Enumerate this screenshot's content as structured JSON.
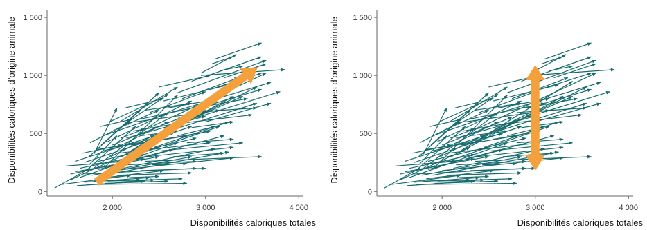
{
  "chart_data": [
    {
      "type": "line",
      "xlabel": "Disponibilités caloriques totales",
      "ylabel": "Disponibilités caloriques d’origine animale",
      "xlim": [
        1300,
        4050
      ],
      "ylim": [
        -40,
        1560
      ],
      "x_ticks": [
        {
          "value": 2000,
          "label": "2 000"
        },
        {
          "value": 3000,
          "label": "3 000"
        },
        {
          "value": 4000,
          "label": "4 000"
        }
      ],
      "y_ticks": [
        {
          "value": 0,
          "label": "0"
        },
        {
          "value": 500,
          "label": "500"
        },
        {
          "value": 1000,
          "label": "1 000"
        },
        {
          "value": 1500,
          "label": "1 500"
        }
      ],
      "arrow_color": "#176b6e",
      "overlay_color": "#f4a03d",
      "overlay": {
        "kind": "single",
        "from": [
          1830,
          80
        ],
        "to": [
          3560,
          1070
        ]
      }
    },
    {
      "type": "line",
      "xlabel": "Disponibilités caloriques totales",
      "ylabel": "Disponibilités caloriques d’origine animale",
      "xlim": [
        1300,
        4050
      ],
      "ylim": [
        -40,
        1560
      ],
      "x_ticks": [
        {
          "value": 2000,
          "label": "2 000"
        },
        {
          "value": 3000,
          "label": "3 000"
        },
        {
          "value": 4000,
          "label": "4 000"
        }
      ],
      "y_ticks": [
        {
          "value": 0,
          "label": "0"
        },
        {
          "value": 500,
          "label": "500"
        },
        {
          "value": 1000,
          "label": "1 000"
        },
        {
          "value": 1500,
          "label": "1 500"
        }
      ],
      "arrow_color": "#176b6e",
      "overlay_color": "#f4a03d",
      "overlay": {
        "kind": "double",
        "from": [
          3000,
          180
        ],
        "to": [
          3000,
          1090
        ]
      }
    }
  ],
  "arrows": [
    [
      1380,
      30,
      1760,
      200
    ],
    [
      1450,
      60,
      2200,
      140
    ],
    [
      1500,
      220,
      2150,
      260
    ],
    [
      1550,
      100,
      2300,
      380
    ],
    [
      1600,
      170,
      2500,
      300
    ],
    [
      1650,
      120,
      2700,
      420
    ],
    [
      1700,
      80,
      2400,
      120
    ],
    [
      1700,
      250,
      2850,
      560
    ],
    [
      1720,
      180,
      2250,
      560
    ],
    [
      1750,
      300,
      2300,
      700
    ],
    [
      1780,
      140,
      2850,
      300
    ],
    [
      1800,
      320,
      2050,
      720
    ],
    [
      1800,
      200,
      2600,
      680
    ],
    [
      1830,
      110,
      2550,
      180
    ],
    [
      1850,
      260,
      2900,
      460
    ],
    [
      1880,
      400,
      2500,
      850
    ],
    [
      1900,
      140,
      3250,
      340
    ],
    [
      1900,
      350,
      2650,
      500
    ],
    [
      1920,
      210,
      2700,
      830
    ],
    [
      1950,
      90,
      2750,
      110
    ],
    [
      1950,
      430,
      2850,
      780
    ],
    [
      1980,
      300,
      3000,
      700
    ],
    [
      2000,
      180,
      3300,
      290
    ],
    [
      2000,
      520,
      2500,
      700
    ],
    [
      2020,
      250,
      3150,
      560
    ],
    [
      2050,
      380,
      2600,
      600
    ],
    [
      2050,
      140,
      2850,
      160
    ],
    [
      2080,
      600,
      2700,
      900
    ],
    [
      2100,
      300,
      3300,
      820
    ],
    [
      2120,
      200,
      3100,
      370
    ],
    [
      2150,
      460,
      3000,
      650
    ],
    [
      2180,
      120,
      2500,
      130
    ],
    [
      2200,
      350,
      3400,
      950
    ],
    [
      2220,
      520,
      2800,
      600
    ],
    [
      2250,
      280,
      3200,
      480
    ],
    [
      2280,
      620,
      3100,
      760
    ],
    [
      2300,
      180,
      3000,
      200
    ],
    [
      2330,
      420,
      3550,
      900
    ],
    [
      2350,
      700,
      2850,
      760
    ],
    [
      2380,
      300,
      3300,
      380
    ],
    [
      2400,
      550,
      3650,
      1020
    ],
    [
      2430,
      230,
      2800,
      240
    ],
    [
      2450,
      480,
      3400,
      820
    ],
    [
      2500,
      650,
      3700,
      940
    ],
    [
      2520,
      350,
      3400,
      420
    ],
    [
      2550,
      780,
      3250,
      920
    ],
    [
      2600,
      520,
      3550,
      760
    ],
    [
      2650,
      300,
      3200,
      330
    ],
    [
      2700,
      850,
      3650,
      1130
    ],
    [
      2750,
      600,
      3800,
      860
    ],
    [
      2800,
      420,
      3300,
      450
    ],
    [
      2850,
      950,
      3600,
      1160
    ],
    [
      2900,
      720,
      3450,
      800
    ],
    [
      2950,
      1020,
      3330,
      1180
    ],
    [
      2950,
      1000,
      3850,
      1050
    ],
    [
      3000,
      600,
      3700,
      760
    ],
    [
      3050,
      880,
      3600,
      1020
    ],
    [
      3070,
      1100,
      3290,
      1160
    ],
    [
      3100,
      760,
      3600,
      880
    ],
    [
      3100,
      1140,
      3600,
      1280
    ],
    [
      3150,
      1040,
      3400,
      1080
    ],
    [
      3200,
      980,
      3650,
      1100
    ],
    [
      1600,
      260,
      2450,
      480
    ],
    [
      1650,
      200,
      2350,
      320
    ],
    [
      1700,
      150,
      2900,
      200
    ],
    [
      1750,
      230,
      2050,
      480
    ],
    [
      1800,
      90,
      2300,
      100
    ],
    [
      1850,
      190,
      2650,
      360
    ],
    [
      1900,
      480,
      2550,
      660
    ],
    [
      1950,
      250,
      2350,
      280
    ],
    [
      2000,
      400,
      2750,
      640
    ],
    [
      2060,
      330,
      3050,
      420
    ],
    [
      2100,
      560,
      2600,
      840
    ],
    [
      2150,
      230,
      2900,
      260
    ],
    [
      2200,
      400,
      2800,
      480
    ],
    [
      2250,
      600,
      3150,
      700
    ],
    [
      2300,
      480,
      2700,
      520
    ],
    [
      2350,
      260,
      3600,
      300
    ],
    [
      2400,
      680,
      3000,
      860
    ],
    [
      2450,
      380,
      3250,
      600
    ],
    [
      2500,
      900,
      3050,
      1000
    ],
    [
      2550,
      450,
      3050,
      520
    ],
    [
      2600,
      720,
      3150,
      800
    ],
    [
      2650,
      580,
      3500,
      660
    ],
    [
      2700,
      480,
      3100,
      560
    ],
    [
      2750,
      800,
      3350,
      980
    ],
    [
      2800,
      680,
      3550,
      720
    ],
    [
      2850,
      550,
      3300,
      600
    ],
    [
      1550,
      150,
      1950,
      220
    ],
    [
      1620,
      50,
      2350,
      90
    ],
    [
      1680,
      330,
      2100,
      400
    ],
    [
      1720,
      60,
      2800,
      70
    ],
    [
      1760,
      420,
      2200,
      600
    ],
    [
      1820,
      360,
      2400,
      430
    ],
    [
      1870,
      560,
      2200,
      620
    ],
    [
      1920,
      70,
      2600,
      90
    ],
    [
      1970,
      600,
      2400,
      760
    ],
    [
      2030,
      80,
      2450,
      100
    ],
    [
      2090,
      460,
      2350,
      540
    ],
    [
      2140,
      720,
      2550,
      800
    ]
  ]
}
